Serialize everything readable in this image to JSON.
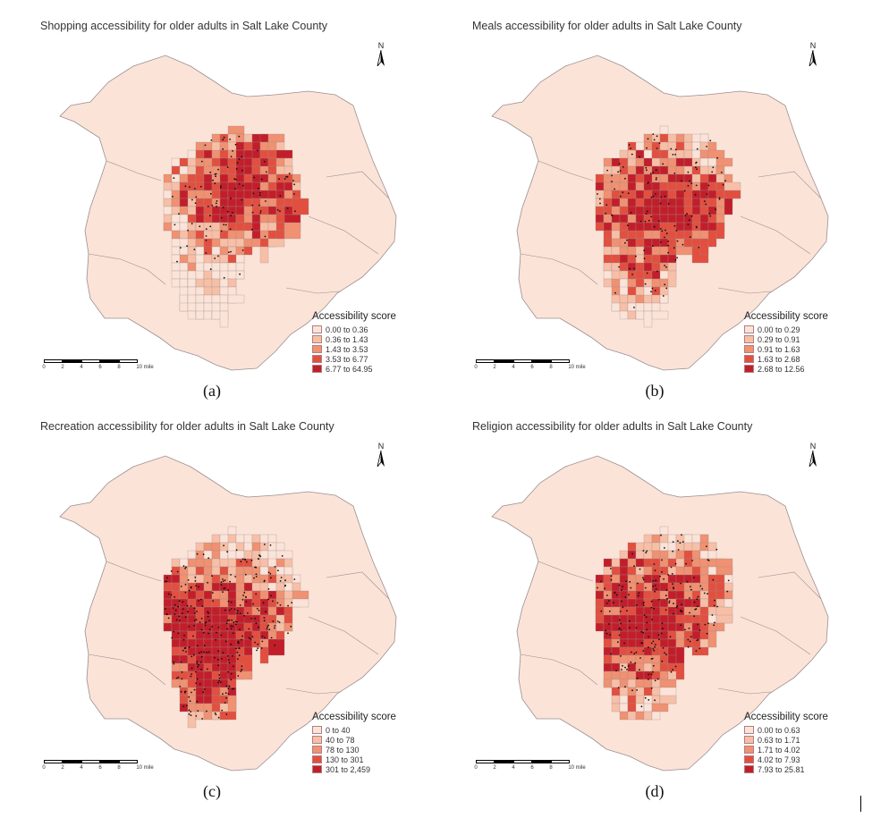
{
  "colors": {
    "background": "#f7ddd0",
    "classes": [
      "#fbe3d8",
      "#f8bfa7",
      "#f09172",
      "#e24f3f",
      "#c21e2a"
    ],
    "outline": "#9a8f8f",
    "dots": "#111111"
  },
  "panels": [
    {
      "id": "a",
      "title": "Shopping accessibility for older adults in Salt Lake County",
      "caption": "(a)",
      "north_label": "N",
      "legend_title": "Accessibility score",
      "legend": [
        "0.00 to 0.36",
        "0.36 to 1.43",
        "1.43 to 3.53",
        "3.53 to 6.77",
        "6.77 to 64.95"
      ],
      "scale_labels": [
        "0",
        "2",
        "4",
        "6",
        "8",
        "10 mile"
      ]
    },
    {
      "id": "b",
      "title": "Meals accessibility for older adults in Salt Lake County",
      "caption": "(b)",
      "north_label": "N",
      "legend_title": "Accessibility score",
      "legend": [
        "0.00 to 0.29",
        "0.29 to 0.91",
        "0.91 to 1.63",
        "1.63 to 2.68",
        "2.68 to 12.56"
      ],
      "scale_labels": [
        "0",
        "2",
        "4",
        "6",
        "8",
        "10 mile"
      ]
    },
    {
      "id": "c",
      "title": "Recreation accessibility for older adults in Salt Lake County",
      "caption": "(c)",
      "north_label": "N",
      "legend_title": "Accessibility score",
      "legend": [
        "0 to 40",
        "40 to 78",
        "78 to 130",
        "130 to 301",
        "301 to 2,459"
      ],
      "scale_labels": [
        "0",
        "2",
        "4",
        "6",
        "8",
        "10 mile"
      ]
    },
    {
      "id": "d",
      "title": "Religion accessibility for older adults in Salt Lake County",
      "caption": "(d)",
      "north_label": "N",
      "legend_title": "Accessibility score",
      "legend": [
        "0.00 to 0.63",
        "0.63 to 1.71",
        "1.71 to 4.02",
        "4.02 to 7.93",
        "7.93 to 25.81"
      ],
      "scale_labels": [
        "0",
        "2",
        "4",
        "6",
        "8",
        "10 mile"
      ]
    }
  ]
}
